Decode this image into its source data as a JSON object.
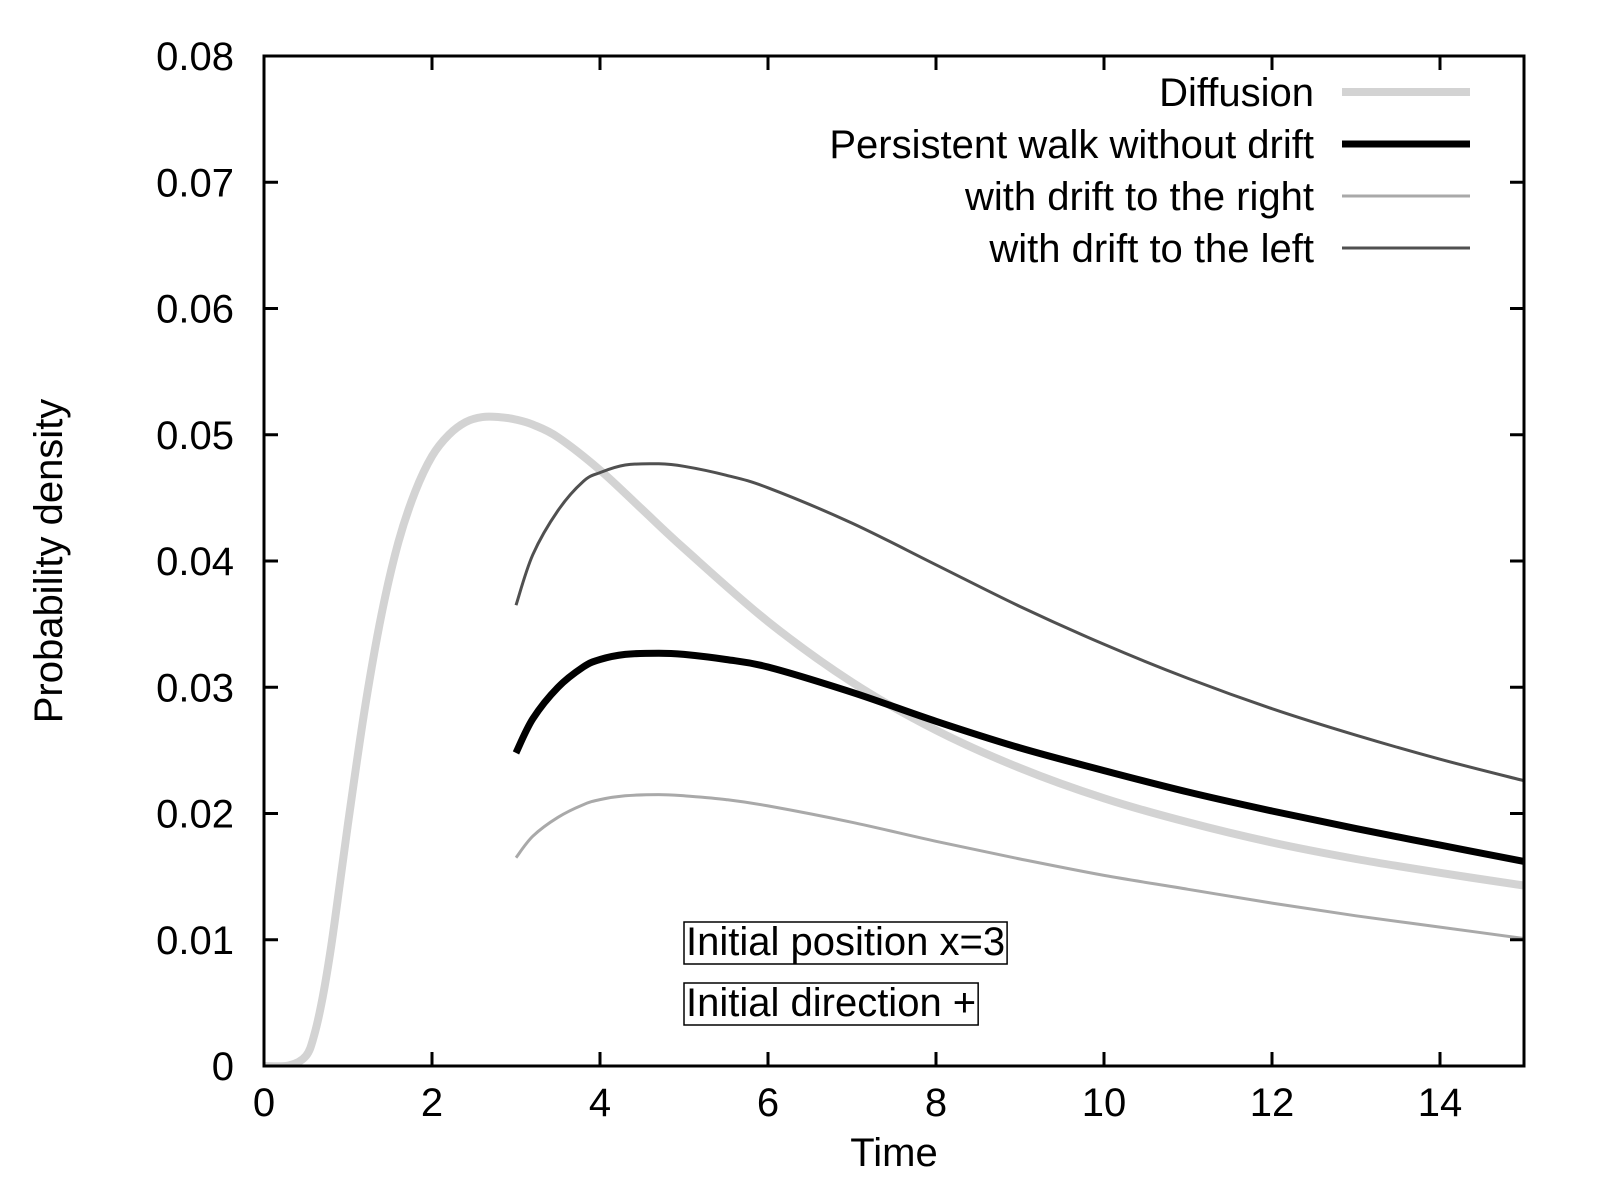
{
  "chart_data": {
    "type": "line",
    "title": "",
    "xlabel": "Time",
    "ylabel": "Probability density",
    "xlim": [
      0,
      15
    ],
    "ylim": [
      0,
      0.08
    ],
    "xticks": [
      0,
      2,
      4,
      6,
      8,
      10,
      12,
      14
    ],
    "xtick_labels": [
      "0",
      "2",
      "4",
      "6",
      "8",
      "10",
      "12",
      "14"
    ],
    "yticks": [
      0,
      0.01,
      0.02,
      0.03,
      0.04,
      0.05,
      0.06,
      0.07,
      0.08
    ],
    "ytick_labels": [
      "0",
      "0.01",
      "0.02",
      "0.03",
      "0.04",
      "0.05",
      "0.06",
      "0.07",
      "0.08"
    ],
    "grid": false,
    "legend_position": "top-right",
    "series": [
      {
        "name": "Diffusion",
        "color": "#d3d3d3",
        "x": [
          0,
          0.3,
          0.5,
          0.6,
          0.7,
          0.8,
          0.9,
          1.0,
          1.2,
          1.4,
          1.6,
          1.8,
          2.0,
          2.2,
          2.4,
          2.6,
          2.8,
          3.0,
          3.2,
          3.5,
          4.0,
          4.5,
          5.0,
          6.0,
          7.0,
          8.0,
          9.0,
          10.0,
          11.0,
          12.0,
          13.0,
          14.0,
          15.0
        ],
        "y": [
          0,
          5e-05,
          0.0008,
          0.0025,
          0.0055,
          0.0095,
          0.0143,
          0.0192,
          0.0283,
          0.0358,
          0.0415,
          0.0455,
          0.0483,
          0.05,
          0.051,
          0.0514,
          0.0514,
          0.0512,
          0.0508,
          0.0498,
          0.0472,
          0.0441,
          0.041,
          0.0352,
          0.0304,
          0.0266,
          0.0236,
          0.0212,
          0.0193,
          0.0177,
          0.0164,
          0.0153,
          0.0143
        ]
      },
      {
        "name": "Persistent walk without drift",
        "color": "#000000",
        "x": [
          3.0,
          3.2,
          3.5,
          3.8,
          4.0,
          4.3,
          4.7,
          5.0,
          5.5,
          6.0,
          7.0,
          8.0,
          9.0,
          10.0,
          11.0,
          12.0,
          13.0,
          14.0,
          15.0
        ],
        "y": [
          0.0248,
          0.0275,
          0.03,
          0.0316,
          0.0322,
          0.0326,
          0.0327,
          0.0326,
          0.0322,
          0.0316,
          0.0296,
          0.0273,
          0.0252,
          0.0234,
          0.0217,
          0.0202,
          0.0188,
          0.0175,
          0.0162
        ]
      },
      {
        "name": "with drift to the right",
        "color": "#a9a9a9",
        "x": [
          3.0,
          3.2,
          3.5,
          3.8,
          4.0,
          4.3,
          4.7,
          5.0,
          5.5,
          6.0,
          7.0,
          8.0,
          9.0,
          10.0,
          11.0,
          12.0,
          13.0,
          14.0,
          15.0
        ],
        "y": [
          0.0165,
          0.0182,
          0.0197,
          0.0207,
          0.0211,
          0.0214,
          0.0215,
          0.0214,
          0.0211,
          0.0206,
          0.0193,
          0.0178,
          0.0164,
          0.0151,
          0.014,
          0.0129,
          0.0119,
          0.011,
          0.0101
        ]
      },
      {
        "name": "with drift to the left",
        "color": "#505050",
        "x": [
          3.0,
          3.2,
          3.5,
          3.8,
          4.0,
          4.3,
          4.7,
          5.0,
          5.5,
          6.0,
          7.0,
          8.0,
          9.0,
          10.0,
          11.0,
          12.0,
          13.0,
          14.0,
          15.0
        ],
        "y": [
          0.0365,
          0.0405,
          0.044,
          0.0463,
          0.047,
          0.0476,
          0.0477,
          0.0475,
          0.0468,
          0.0458,
          0.043,
          0.0397,
          0.0364,
          0.0334,
          0.0307,
          0.0283,
          0.0262,
          0.0243,
          0.0226
        ]
      }
    ],
    "annotations": [
      "Initial position x=3",
      "Initial direction +"
    ]
  }
}
